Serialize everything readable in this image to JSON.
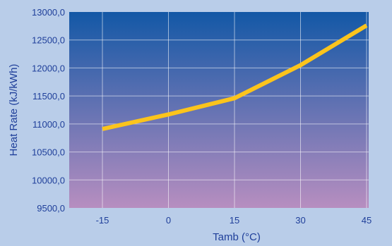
{
  "chart_data": {
    "type": "line",
    "xlabel": "Tamb (°C)",
    "ylabel": "Heat Rate (kJ/kWh)",
    "x": [
      -15,
      0,
      15,
      30,
      45
    ],
    "x_tick_labels": [
      "-15",
      "0",
      "15",
      "30",
      "45"
    ],
    "y_tick_labels": [
      "9500,0",
      "10000,0",
      "10500,0",
      "11000,0",
      "11500,0",
      "12000,0",
      "12500,0",
      "13000,0"
    ],
    "ylim": [
      9500,
      13000
    ],
    "grid": true,
    "series": [
      {
        "values": [
          10910,
          11170,
          11460,
          12050,
          12760
        ]
      }
    ],
    "colors": {
      "line": "#fbc41c",
      "plot_top": "#1358a6",
      "plot_bottom": "#b78ec0",
      "background": "#b9cde9",
      "text": "#1f3f9a"
    }
  }
}
